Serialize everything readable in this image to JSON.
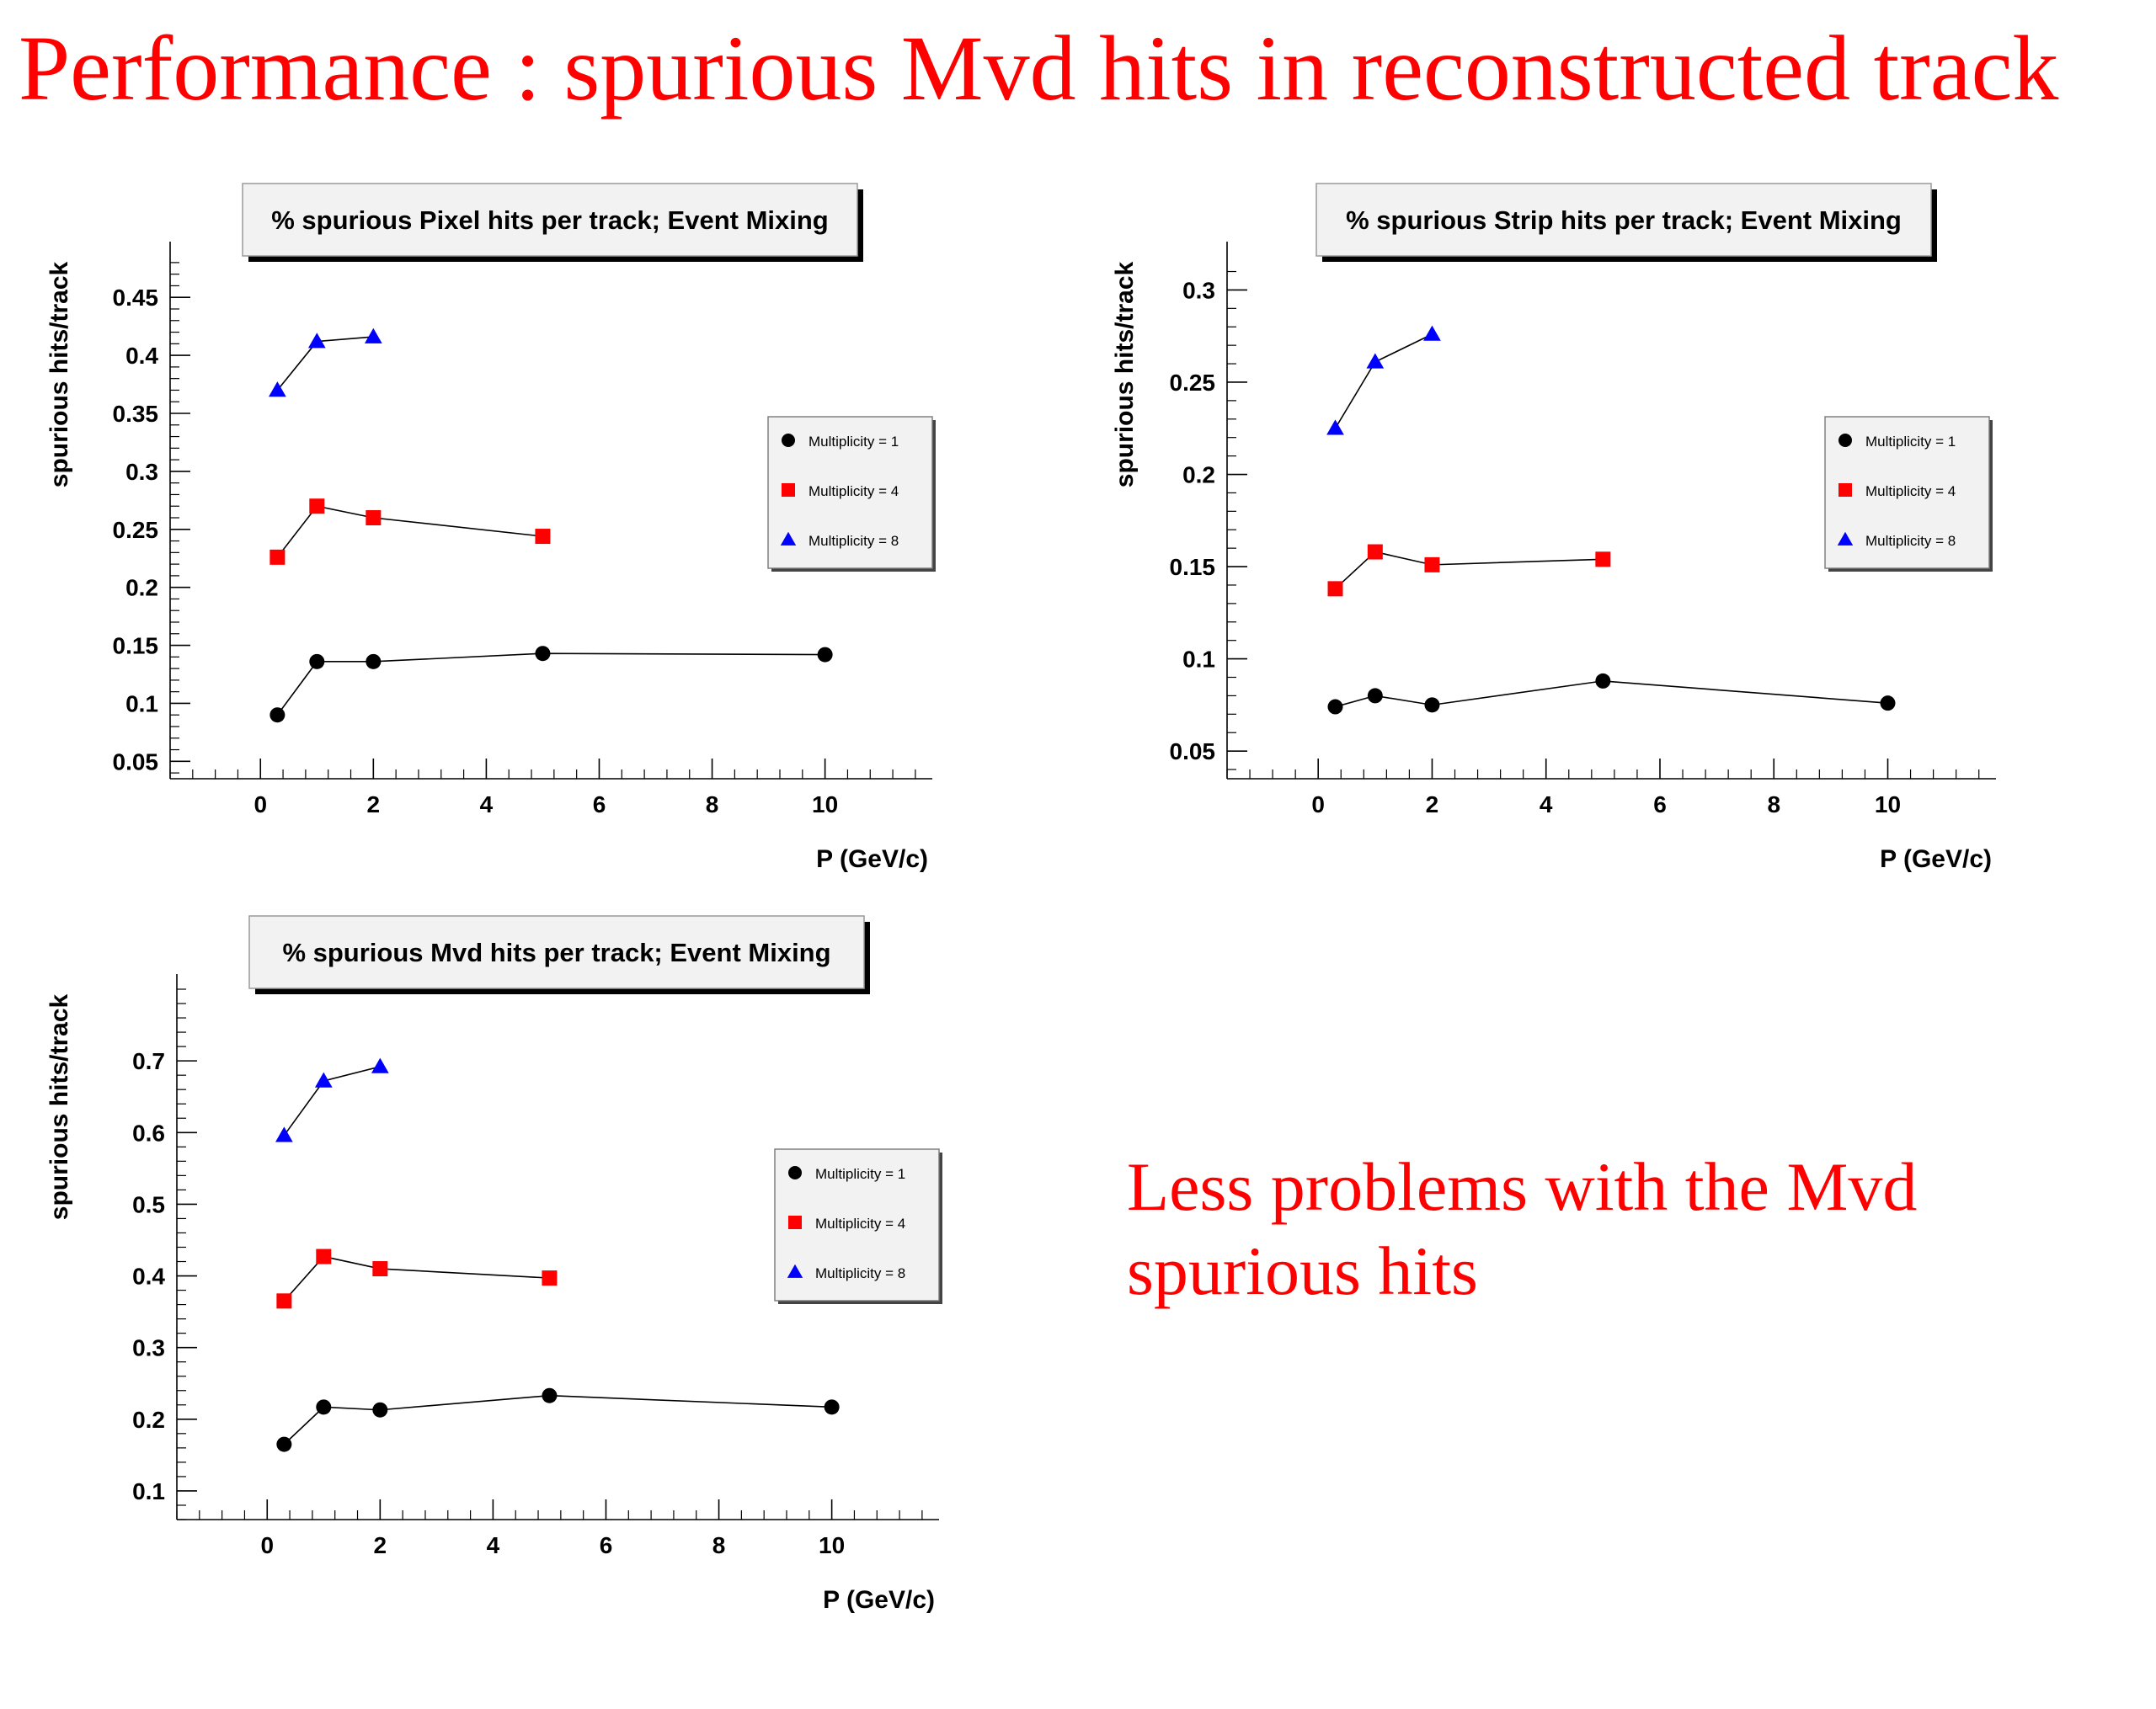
{
  "slide": {
    "title": "Performance : spurious Mvd hits in reconstructed track",
    "note": "Less problems with the Mvd spurious hits",
    "accent_color": "#ff0000"
  },
  "chart_data": [
    {
      "type": "line",
      "title": "% spurious Pixel hits per track; Event Mixing",
      "xlabel": "P (GeV/c)",
      "ylabel": "spurious hits/track",
      "xlim": [
        -1.6,
        11.9
      ],
      "ylim": [
        0.035,
        0.485
      ],
      "xticks": [
        0,
        2,
        4,
        6,
        8,
        10
      ],
      "xtick_labels": [
        "0",
        "2",
        "4",
        "6",
        "8",
        "10"
      ],
      "yticks": [
        0.05,
        0.1,
        0.15,
        0.2,
        0.25,
        0.3,
        0.35,
        0.4,
        0.45
      ],
      "ytick_labels": [
        "0.05",
        "0.1",
        "0.15",
        "0.2",
        "0.25",
        "0.3",
        "0.35",
        "0.4",
        "0.45"
      ],
      "legend_position": "right",
      "series": [
        {
          "name": "Multiplicity = 1",
          "marker": "circle",
          "color": "#000000",
          "x": [
            0.3,
            1,
            2,
            5,
            10
          ],
          "y": [
            0.09,
            0.136,
            0.136,
            0.143,
            0.142
          ]
        },
        {
          "name": "Multiplicity = 4",
          "marker": "square",
          "color": "#ff0000",
          "x": [
            0.3,
            1,
            2,
            5
          ],
          "y": [
            0.226,
            0.27,
            0.26,
            0.244
          ]
        },
        {
          "name": "Multiplicity = 8",
          "marker": "triangle",
          "color": "#0000ff",
          "x": [
            0.3,
            1,
            2
          ],
          "y": [
            0.37,
            0.412,
            0.416
          ]
        }
      ]
    },
    {
      "type": "line",
      "title": "% spurious Strip hits per track; Event Mixing",
      "xlabel": "P (GeV/c)",
      "ylabel": "spurious hits/track",
      "xlim": [
        -1.6,
        11.9
      ],
      "ylim": [
        0.035,
        0.318
      ],
      "xticks": [
        0,
        2,
        4,
        6,
        8,
        10
      ],
      "xtick_labels": [
        "0",
        "2",
        "4",
        "6",
        "8",
        "10"
      ],
      "yticks": [
        0.05,
        0.1,
        0.15,
        0.2,
        0.25,
        0.3
      ],
      "ytick_labels": [
        "0.05",
        "0.1",
        "0.15",
        "0.2",
        "0.25",
        "0.3"
      ],
      "legend_position": "right",
      "series": [
        {
          "name": "Multiplicity = 1",
          "marker": "circle",
          "color": "#000000",
          "x": [
            0.3,
            1,
            2,
            5,
            10
          ],
          "y": [
            0.074,
            0.08,
            0.075,
            0.088,
            0.076
          ]
        },
        {
          "name": "Multiplicity = 4",
          "marker": "square",
          "color": "#ff0000",
          "x": [
            0.3,
            1,
            2,
            5
          ],
          "y": [
            0.138,
            0.158,
            0.151,
            0.154
          ]
        },
        {
          "name": "Multiplicity = 8",
          "marker": "triangle",
          "color": "#0000ff",
          "x": [
            0.3,
            1,
            2
          ],
          "y": [
            0.225,
            0.261,
            0.276
          ]
        }
      ]
    },
    {
      "type": "line",
      "title": "% spurious Mvd hits per track; Event Mixing",
      "xlabel": "P (GeV/c)",
      "ylabel": "spurious hits/track",
      "xlim": [
        -1.6,
        11.9
      ],
      "ylim": [
        0.06,
        0.8
      ],
      "xticks": [
        0,
        2,
        4,
        6,
        8,
        10
      ],
      "xtick_labels": [
        "0",
        "2",
        "4",
        "6",
        "8",
        "10"
      ],
      "yticks": [
        0.1,
        0.2,
        0.3,
        0.4,
        0.5,
        0.6,
        0.7
      ],
      "ytick_labels": [
        "0.1",
        "0.2",
        "0.3",
        "0.4",
        "0.5",
        "0.6",
        "0.7"
      ],
      "legend_position": "right",
      "series": [
        {
          "name": "Multiplicity = 1",
          "marker": "circle",
          "color": "#000000",
          "x": [
            0.3,
            1,
            2,
            5,
            10
          ],
          "y": [
            0.165,
            0.217,
            0.213,
            0.233,
            0.217
          ]
        },
        {
          "name": "Multiplicity = 4",
          "marker": "square",
          "color": "#ff0000",
          "x": [
            0.3,
            1,
            2,
            5
          ],
          "y": [
            0.365,
            0.427,
            0.41,
            0.397
          ]
        },
        {
          "name": "Multiplicity = 8",
          "marker": "triangle",
          "color": "#0000ff",
          "x": [
            0.3,
            1,
            2
          ],
          "y": [
            0.596,
            0.672,
            0.692
          ]
        }
      ]
    }
  ]
}
